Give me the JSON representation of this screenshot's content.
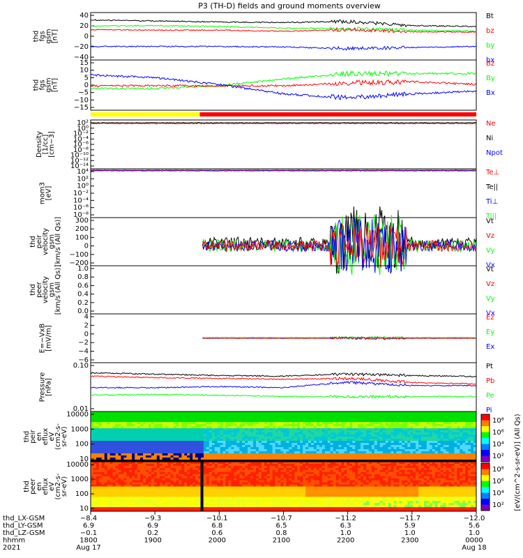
{
  "title": "P3 (TH-D) fields and ground moments overview",
  "colors": {
    "black": "#000000",
    "red": "#ff0000",
    "green": "#00ff00",
    "blue": "#0000ff",
    "yellow": "#ffff00"
  },
  "colorbar": {
    "label": "[eV/(cm^2-s-sr-eV)] (All Qs)",
    "ticks_top": [
      "10⁸",
      "10⁶",
      "10⁴",
      "10²"
    ],
    "ticks_bottom": [
      "10⁸",
      "10⁶",
      "10⁴",
      "10²"
    ]
  },
  "panels": [
    {
      "ylabel": [
        "thd",
        "fgs",
        "gsm",
        "[nT]"
      ],
      "ticks": [
        "40",
        "20",
        "0",
        "−20",
        "−40"
      ],
      "ylim": [
        -40,
        42
      ],
      "legend": [
        {
          "text": "Bt",
          "color": "black"
        },
        {
          "text": "bz",
          "color": "red"
        },
        {
          "text": "by",
          "color": "green"
        },
        {
          "text": "bx",
          "color": "blue"
        }
      ]
    },
    {
      "ylabel": [
        "thd",
        "fgs",
        "gsm",
        "[nT]"
      ],
      "ticks": [
        "15",
        "10",
        "5",
        "0",
        "−5",
        "−10",
        "−15"
      ],
      "ylim": [
        -17,
        16
      ],
      "legend": [
        {
          "text": "Bz",
          "color": "red"
        },
        {
          "text": "By",
          "color": "green"
        },
        {
          "text": "Bx",
          "color": "blue"
        }
      ]
    },
    {
      "ylabel": [
        "Density",
        "[1/cc]",
        "[cm−3]"
      ],
      "ticks": [
        "10²",
        "10⁰",
        "10⁻²",
        "10⁻⁴",
        "10⁻⁶",
        "10⁻⁸",
        "10⁻¹⁰",
        "10⁻¹²",
        "10⁻¹⁴"
      ],
      "legend": [
        {
          "text": "Ne",
          "color": "red"
        },
        {
          "text": "Ni",
          "color": "black"
        },
        {
          "text": "Npot",
          "color": "blue"
        }
      ]
    },
    {
      "ylabel": [
        "mom3",
        "[eV]"
      ],
      "ticks": [
        "10⁴",
        "10²",
        "10⁰",
        "10⁻²",
        "10⁻⁴",
        "10⁻⁶",
        "10⁻⁸"
      ],
      "legend": [
        {
          "text": "Te⊥",
          "color": "red"
        },
        {
          "text": "Te||",
          "color": "black"
        },
        {
          "text": "Ti⊥",
          "color": "blue"
        },
        {
          "text": "Ti||",
          "color": "green"
        }
      ]
    },
    {
      "ylabel": [
        "thd",
        "peir",
        "velocity",
        "gsm",
        "[km/s (All Qs)]"
      ],
      "ticks": [
        "300",
        "200",
        "100",
        "0",
        "−100",
        "−200"
      ],
      "ylim": [
        -200,
        300
      ],
      "legend": [
        {
          "text": "Vt",
          "color": "black"
        },
        {
          "text": "Vz",
          "color": "red"
        },
        {
          "text": "Vy",
          "color": "green"
        },
        {
          "text": "Vx",
          "color": "blue"
        }
      ]
    },
    {
      "ylabel": [
        "thd",
        "peer",
        "velocity",
        "gsm",
        "[km/s (All Qs)]"
      ],
      "ticks": [
        "1.0",
        "0.8",
        "0.6",
        "0.4",
        "0.2",
        "0.0"
      ],
      "ylim": [
        0,
        1
      ],
      "legend": [
        {
          "text": "Vt",
          "color": "black"
        },
        {
          "text": "Vz",
          "color": "red"
        },
        {
          "text": "Vy",
          "color": "green"
        },
        {
          "text": "Vx",
          "color": "blue"
        }
      ]
    },
    {
      "ylabel": [
        "E=−VxB",
        "[mV/m]"
      ],
      "ticks": [
        "4",
        "2",
        "0",
        "−2",
        "−4",
        "−6"
      ],
      "ylim": [
        -6,
        6
      ],
      "legend": [
        {
          "text": "Ez",
          "color": "red"
        },
        {
          "text": "Ey",
          "color": "green"
        },
        {
          "text": "Ex",
          "color": "blue"
        }
      ]
    },
    {
      "ylabel": [
        "Pressure",
        "[nPa]"
      ],
      "ticks": [
        "0.10",
        "0.01"
      ],
      "legend": [
        {
          "text": "Pt",
          "color": "black"
        },
        {
          "text": "Pb",
          "color": "red"
        },
        {
          "text": "Pe",
          "color": "green"
        },
        {
          "text": "Pi",
          "color": "blue"
        }
      ]
    },
    {
      "ylabel": [
        "thd",
        "peir",
        "en",
        "eflux",
        "eV",
        "(cm2-s-",
        "sr-eV)"
      ],
      "ticks": [
        "10000",
        "1000",
        "100",
        "10"
      ]
    },
    {
      "ylabel": [
        "thd",
        "peer",
        "en",
        "eflux",
        "eV",
        "(cm2-s-",
        "sr-eV)"
      ],
      "ticks": [
        "10000",
        "1000",
        "100",
        "10"
      ]
    }
  ],
  "xaxis": {
    "row_labels": [
      "thd_LX-GSM",
      "thd_LY-GSM",
      "thd_LZ-GSM",
      "hhmm",
      "2021"
    ],
    "columns": [
      {
        "vals": [
          "−8.4",
          "6.9",
          "−0.1",
          "1800",
          "Aug 17"
        ]
      },
      {
        "vals": [
          "−9.3",
          "6.9",
          "0.2",
          "1900",
          ""
        ]
      },
      {
        "vals": [
          "−10.1",
          "6.8",
          "0.6",
          "2000",
          ""
        ]
      },
      {
        "vals": [
          "−10.7",
          "6.5",
          "0.8",
          "2100",
          ""
        ]
      },
      {
        "vals": [
          "−11.2",
          "6.3",
          "1.0",
          "2200",
          ""
        ]
      },
      {
        "vals": [
          "−11.7",
          "5.9",
          "1.0",
          "2300",
          ""
        ]
      },
      {
        "vals": [
          "−12.0",
          "5.6",
          "1.0",
          "0000",
          "Aug 18"
        ]
      }
    ]
  },
  "chart_data": {
    "type": "line",
    "title": "P3 (TH-D) fields and ground moments overview",
    "x": [
      "1800",
      "1900",
      "2000",
      "2100",
      "2200",
      "2300",
      "0000"
    ],
    "series": [
      {
        "name": "Bt",
        "values": [
          33,
          31,
          29,
          28,
          30,
          22,
          20
        ]
      },
      {
        "name": "bz",
        "values": [
          14,
          13,
          13,
          11,
          14,
          10,
          9
        ]
      },
      {
        "name": "by",
        "values": [
          21,
          22,
          20,
          17,
          16,
          13,
          11
        ]
      },
      {
        "name": "bx",
        "values": [
          -19,
          -19,
          -19,
          -20,
          -23,
          -21,
          -19
        ]
      },
      {
        "name": "Bz",
        "values": [
          -1,
          -1,
          -1,
          -1,
          1,
          2,
          0
        ]
      },
      {
        "name": "By",
        "values": [
          -3,
          -3,
          -1,
          4,
          8,
          8,
          8
        ]
      },
      {
        "name": "Bx",
        "values": [
          7,
          5,
          0,
          -7,
          -10,
          -7,
          -5
        ]
      },
      {
        "name": "Pt",
        "values": [
          0.4,
          0.35,
          0.3,
          0.28,
          0.35,
          0.3,
          0.27
        ]
      },
      {
        "name": "Pb",
        "values": [
          0.28,
          0.24,
          0.22,
          0.2,
          0.22,
          0.14,
          0.12
        ]
      },
      {
        "name": "Pe",
        "values": [
          0.035,
          0.038,
          0.035,
          0.03,
          0.03,
          0.03,
          0.03
        ]
      },
      {
        "name": "Pi",
        "values": [
          0.08,
          0.08,
          0.09,
          0.08,
          0.14,
          0.1,
          0.1
        ]
      }
    ]
  }
}
